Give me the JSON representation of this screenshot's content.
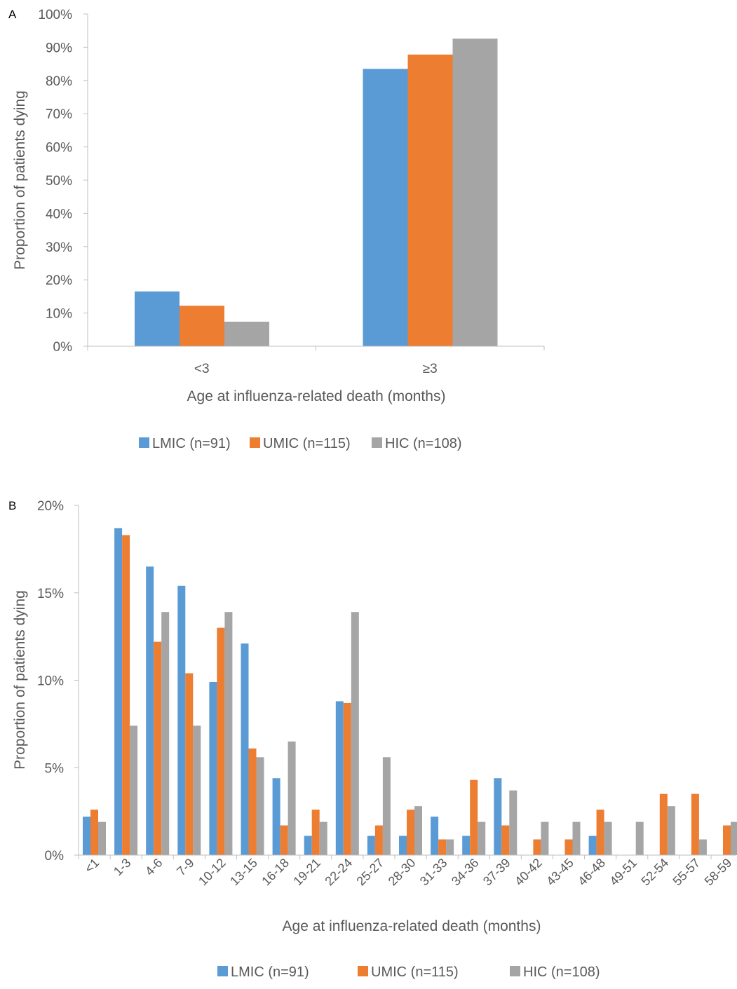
{
  "colors": {
    "lmic": "#5B9BD5",
    "umic": "#ED7D31",
    "hic": "#A5A5A5",
    "axis": "#BFBFBF",
    "text": "#595959"
  },
  "chart_data": [
    {
      "panel_label": "A",
      "type": "bar",
      "xlabel": "Age at influenza-related death (months)",
      "ylabel": "Proportion of patients dying",
      "ylim": [
        0,
        100
      ],
      "yticks": [
        "0%",
        "10%",
        "20%",
        "30%",
        "40%",
        "50%",
        "60%",
        "70%",
        "80%",
        "90%",
        "100%"
      ],
      "grid": false,
      "legend": "bottom",
      "categories": [
        "<3",
        "≥3"
      ],
      "series": [
        {
          "name": "LMIC (n=91)",
          "values": [
            16.5,
            83.5
          ]
        },
        {
          "name": "UMIC (n=115)",
          "values": [
            12.2,
            87.8
          ]
        },
        {
          "name": "HIC (n=108)",
          "values": [
            7.4,
            92.6
          ]
        }
      ]
    },
    {
      "panel_label": "B",
      "type": "bar",
      "xlabel": "Age at influenza-related death (months)",
      "ylabel": "Proportion of patients dying",
      "ylim": [
        0,
        20
      ],
      "yticks": [
        "0%",
        "5%",
        "10%",
        "15%",
        "20%"
      ],
      "grid": false,
      "legend": "bottom",
      "categories": [
        "<1",
        "1-3",
        "4-6",
        "7-9",
        "10-12",
        "13-15",
        "16-18",
        "19-21",
        "22-24",
        "25-27",
        "28-30",
        "31-33",
        "34-36",
        "37-39",
        "40-42",
        "43-45",
        "46-48",
        "49-51",
        "52-54",
        "55-57",
        "58-59"
      ],
      "series": [
        {
          "name": "LMIC (n=91)",
          "values": [
            2.2,
            18.7,
            16.5,
            15.4,
            9.9,
            12.1,
            4.4,
            1.1,
            8.8,
            1.1,
            1.1,
            2.2,
            1.1,
            4.4,
            0,
            0,
            1.1,
            0,
            0,
            0,
            0
          ]
        },
        {
          "name": "UMIC (n=115)",
          "values": [
            2.6,
            18.3,
            12.2,
            10.4,
            13.0,
            6.1,
            1.7,
            2.6,
            8.7,
            1.7,
            2.6,
            0.9,
            4.3,
            1.7,
            0.9,
            0.9,
            2.6,
            0,
            3.5,
            3.5,
            1.7
          ]
        },
        {
          "name": "HIC (n=108)",
          "values": [
            1.9,
            7.4,
            13.9,
            7.4,
            13.9,
            5.6,
            6.5,
            1.9,
            13.9,
            5.6,
            2.8,
            0.9,
            1.9,
            3.7,
            1.9,
            1.9,
            1.9,
            1.9,
            2.8,
            0.9,
            1.9
          ]
        }
      ]
    }
  ]
}
